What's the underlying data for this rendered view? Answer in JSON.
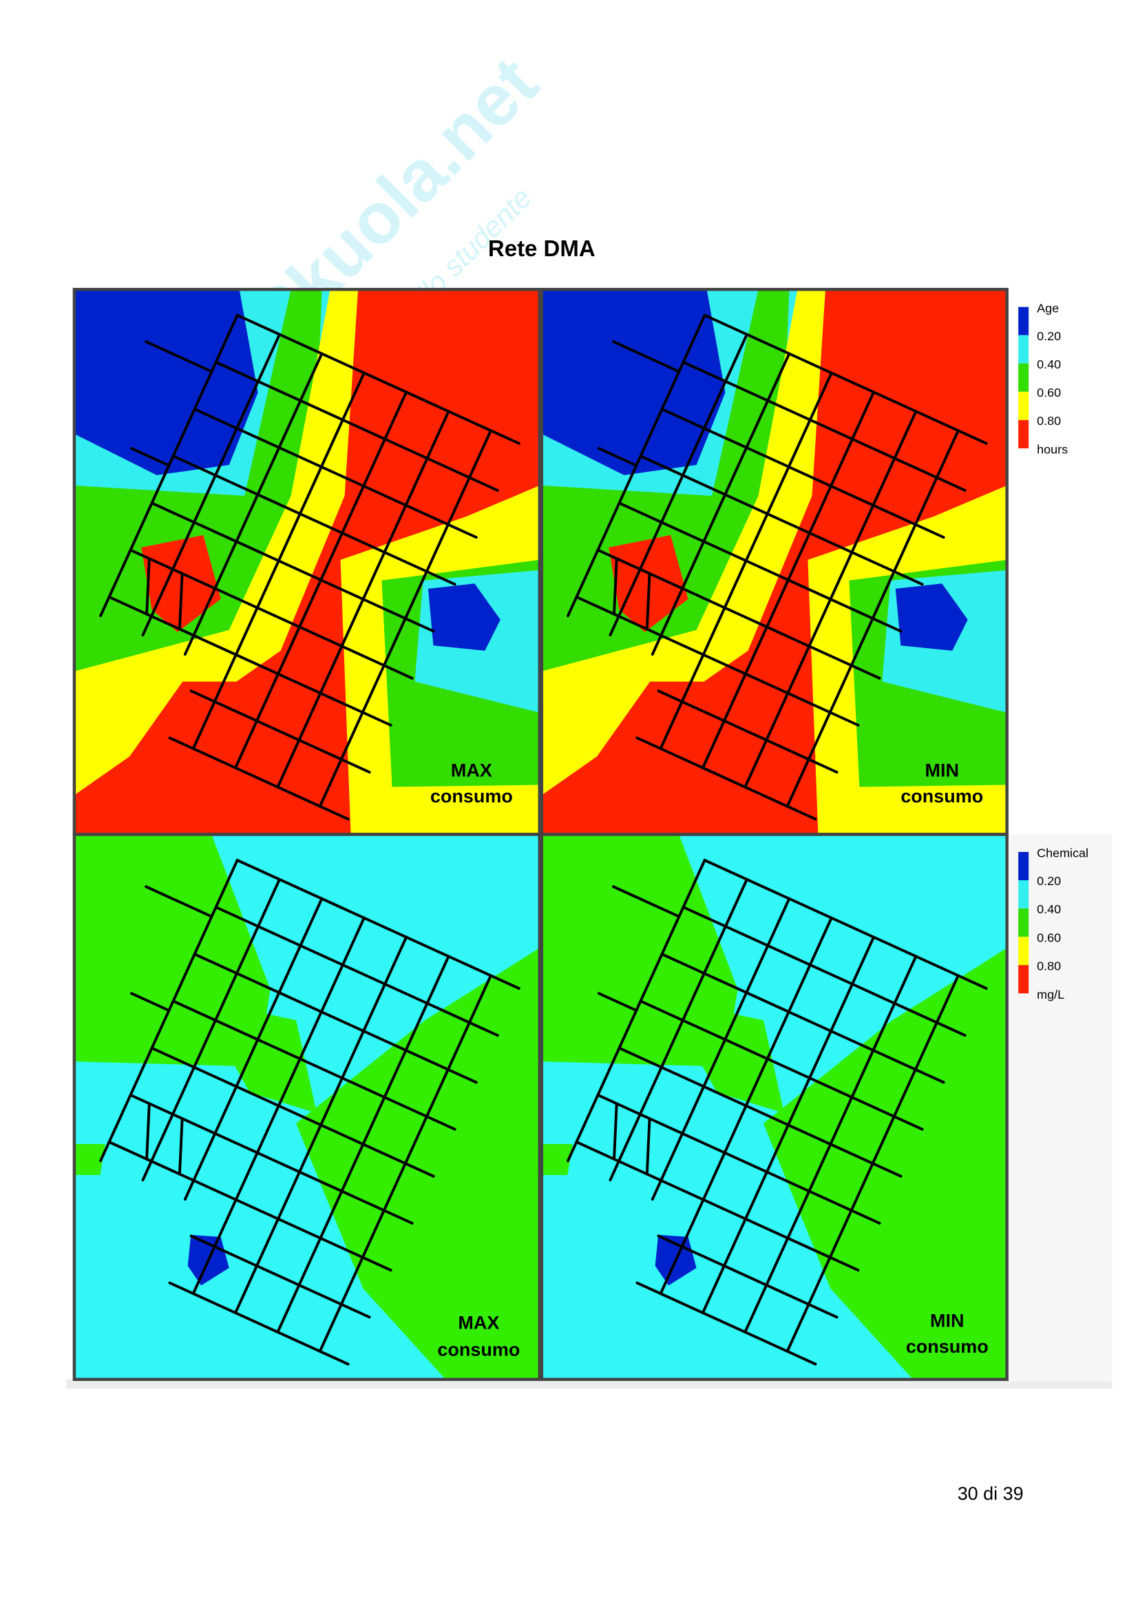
{
  "header": {
    "title": "Rete DMA"
  },
  "watermark": {
    "brand": "Skuola.net",
    "tagline": "appunti dello studente"
  },
  "panels": [
    {
      "label": [
        "MAX",
        "consumo"
      ]
    },
    {
      "label": [
        "MIN",
        "consumo"
      ]
    },
    {
      "label": [
        "MAX",
        "consumo"
      ]
    },
    {
      "label": [
        "MIN",
        "consumo"
      ]
    }
  ],
  "legends": [
    {
      "title": "Age",
      "ticks": [
        "0.20",
        "0.40",
        "0.60",
        "0.80"
      ],
      "unit": "hours"
    },
    {
      "title": "Chemical",
      "ticks": [
        "0.20",
        "0.40",
        "0.60",
        "0.80"
      ],
      "unit": "mg/L"
    }
  ],
  "footer": {
    "page": "30 di 39"
  }
}
